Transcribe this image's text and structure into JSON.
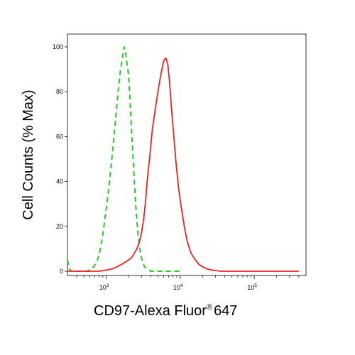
{
  "chart_data": {
    "type": "line",
    "xlabel": "CD97-Alexa Fluor",
    "xlabel_mark": "®",
    "xlabel_suffix": "647",
    "ylabel": "Cell Counts (% Max)",
    "x_scale": "log",
    "xlim": [
      300,
      500000
    ],
    "ylim": [
      0,
      105
    ],
    "y_ticks": [
      0,
      20,
      40,
      60,
      80,
      100
    ],
    "x_tick_labels": [
      {
        "value": 1000,
        "base": "10",
        "exp": "3"
      },
      {
        "value": 10000,
        "base": "10",
        "exp": "4"
      },
      {
        "value": 100000,
        "base": "10",
        "exp": "5"
      }
    ],
    "x_minor_ticks": [
      400,
      500,
      600,
      700,
      800,
      900,
      2000,
      3000,
      4000,
      5000,
      6000,
      7000,
      8000,
      9000,
      20000,
      30000,
      40000,
      50000,
      60000,
      70000,
      80000,
      90000,
      200000,
      300000,
      400000
    ],
    "grid": false,
    "legend": "none",
    "series": [
      {
        "color": "#22cc22",
        "dash": "dashed",
        "x": [
          300,
          320,
          340,
          380,
          450,
          550,
          620,
          680,
          740,
          800,
          880,
          950,
          1050,
          1150,
          1250,
          1350,
          1450,
          1550,
          1650,
          1750,
          1820,
          1900,
          2000,
          2100,
          2200,
          2350,
          2500,
          2700,
          2900,
          3100,
          3300,
          3600,
          4000,
          5000,
          7000,
          10000
        ],
        "y": [
          5,
          1,
          0,
          0,
          0,
          0,
          1,
          2,
          4,
          7,
          14,
          22,
          33,
          45,
          57,
          69,
          80,
          89,
          95,
          100,
          98,
          93,
          88,
          77,
          63,
          46,
          30,
          16,
          8,
          4,
          2,
          1,
          0,
          0,
          0,
          0
        ]
      },
      {
        "color": "#ee2222",
        "dash": "solid",
        "x": [
          300,
          600,
          800,
          1000,
          1200,
          1400,
          1600,
          1800,
          2000,
          2200,
          2400,
          2600,
          2800,
          3000,
          3200,
          3400,
          3600,
          3900,
          4200,
          4600,
          5000,
          5500,
          6000,
          6400,
          6800,
          7200,
          7600,
          8200,
          8800,
          9500,
          10500,
          11500,
          12500,
          14000,
          16000,
          18000,
          20000,
          23000,
          27000,
          35000,
          50000,
          100000,
          200000,
          400000
        ],
        "y": [
          0,
          0,
          0,
          0.5,
          1,
          2,
          3,
          4,
          5,
          6,
          8,
          10,
          13,
          17,
          23,
          31,
          41,
          52,
          63,
          72,
          80,
          88,
          94,
          95,
          92,
          84,
          73,
          60,
          48,
          37,
          27,
          19,
          13,
          8,
          5,
          3,
          2,
          1,
          0.5,
          0,
          0,
          0,
          0,
          0
        ]
      }
    ]
  }
}
